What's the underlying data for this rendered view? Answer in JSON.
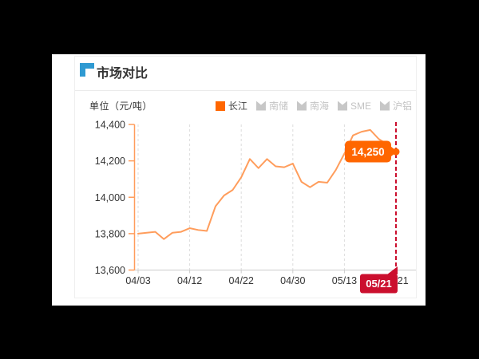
{
  "header": {
    "title": "市场对比"
  },
  "chart": {
    "unit_label": "单位（元/吨）",
    "legend": [
      {
        "label": "长江",
        "active": true
      },
      {
        "label": "南储",
        "active": false
      },
      {
        "label": "南海",
        "active": false
      },
      {
        "label": "SME",
        "active": false
      },
      {
        "label": "沪铝",
        "active": false
      }
    ],
    "tooltip_value": "14,250",
    "pointer_date": "05/21"
  },
  "colors": {
    "accent_blue": "#2f9ad2",
    "series_orange": "#ff9d5c",
    "strong_orange": "#ff6600",
    "pointer_red": "#cb0f2e",
    "grid_gray": "#dddddd",
    "axis_gray": "#cccccc",
    "text_dark": "#333333",
    "inactive_gray": "#c7c7c7"
  },
  "chart_data": {
    "type": "line",
    "title": "市场对比",
    "ylabel": "单位（元/吨）",
    "ylim": [
      13600,
      14400
    ],
    "ytick_values": [
      14400,
      14200,
      14000,
      13800,
      13600
    ],
    "ytick_labels": [
      "14,400",
      "14,200",
      "14,000",
      "13,800",
      "13,600"
    ],
    "xtick_labels": [
      "04/03",
      "04/12",
      "04/22",
      "04/30",
      "05/13",
      "05/21"
    ],
    "xtick_indices": [
      0,
      6,
      12,
      18,
      24,
      30
    ],
    "grid": "vertical-dashed",
    "legend_position": "top-right",
    "series": [
      {
        "name": "长江",
        "color": "#ff9d5c",
        "values": [
          13800,
          13805,
          13810,
          13770,
          13805,
          13810,
          13830,
          13820,
          13815,
          13950,
          14010,
          14040,
          14110,
          14210,
          14160,
          14210,
          14170,
          14165,
          14185,
          14085,
          14055,
          14085,
          14080,
          14150,
          14240,
          14340,
          14360,
          14370,
          14320,
          14290,
          14250
        ]
      }
    ],
    "inactive_series": [
      "南储",
      "南海",
      "SME",
      "沪铝"
    ],
    "highlight": {
      "index": 30,
      "label": "05/21",
      "value": 14250,
      "value_formatted": "14,250"
    }
  }
}
